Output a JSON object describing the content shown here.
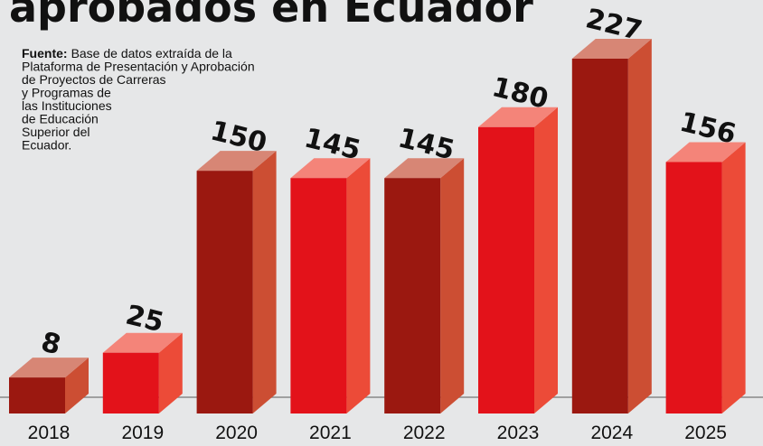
{
  "chart_data": {
    "type": "bar3d",
    "title": "aprobados en Ecuador",
    "source_label": "Fuente:",
    "source_lines": [
      "Base de datos extraída de la",
      "Plataforma de Presentación y Aprobación",
      "de Proyectos de Carreras",
      "y Programas de",
      "las Instituciones",
      "de Educación",
      "Superior del",
      "Ecuador."
    ],
    "categories": [
      "2018",
      "2019",
      "2020",
      "2021",
      "2022",
      "2023",
      "2024",
      "2025"
    ],
    "values": [
      8,
      25,
      150,
      145,
      145,
      180,
      227,
      156
    ],
    "colors": [
      "#9b1810",
      "#e3121a",
      "#9b1810",
      "#e3121a",
      "#9b1810",
      "#e3121a",
      "#9b1810",
      "#e3121a"
    ]
  }
}
